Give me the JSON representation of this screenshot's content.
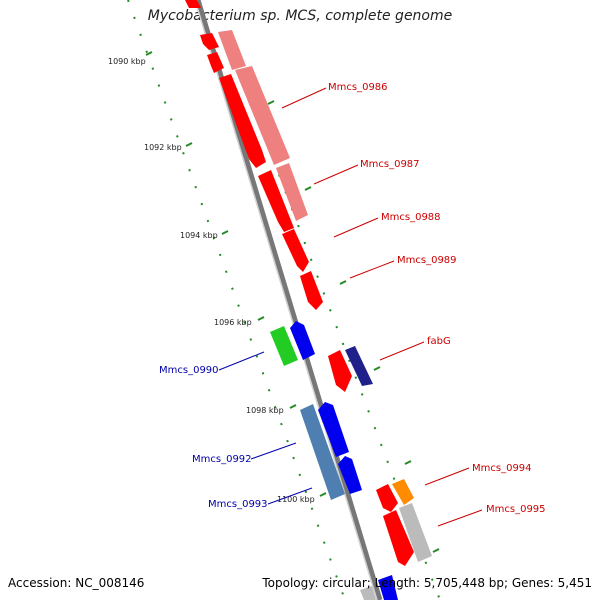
{
  "title": "Mycobacterium sp. MCS, complete genome",
  "footer": {
    "accession": "Accession: NC_008146",
    "summary": "Topology: circular; Length: 5,705,448 bp; Genes: 5,451"
  },
  "colors": {
    "forward_gene": "#ff0000",
    "forward_gene_pale": "#ee8080",
    "reverse_gene": "#0000ee",
    "reverse_gene_pale": "#4f7fb0",
    "backbone": "#888888",
    "tick": "#228b22",
    "label_forward": "#cc0000",
    "label_reverse": "#0000aa"
  },
  "ticks": [
    {
      "label": "1090 kbp"
    },
    {
      "label": "1092 kbp"
    },
    {
      "label": "1094 kbp"
    },
    {
      "label": "1096 kbp"
    },
    {
      "label": "1098 kbp"
    },
    {
      "label": "1100 kbp"
    }
  ],
  "gene_labels": [
    {
      "label": "Mmcs_0986",
      "strand": "forward"
    },
    {
      "label": "Mmcs_0987",
      "strand": "forward"
    },
    {
      "label": "Mmcs_0988",
      "strand": "forward"
    },
    {
      "label": "Mmcs_0989",
      "strand": "forward"
    },
    {
      "label": "fabG",
      "strand": "forward"
    },
    {
      "label": "Mmcs_0990",
      "strand": "reverse"
    },
    {
      "label": "Mmcs_0992",
      "strand": "reverse"
    },
    {
      "label": "Mmcs_0993",
      "strand": "reverse"
    },
    {
      "label": "Mmcs_0994",
      "strand": "forward"
    },
    {
      "label": "Mmcs_0995",
      "strand": "forward"
    }
  ]
}
